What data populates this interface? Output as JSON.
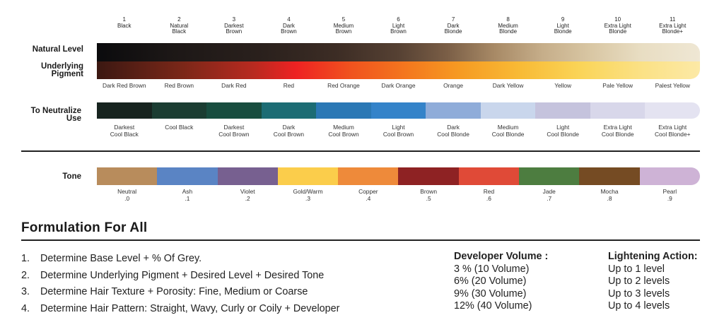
{
  "levels": [
    "1\nBlack",
    "2\nNatural\nBlack",
    "3\nDarkest\nBrown",
    "4\nDark\nBrown",
    "5\nMedium\nBrown",
    "6\nLight\nBrown",
    "7\nDark\nBlonde",
    "8\nMedium\nBlonde",
    "9\nLight\nBlonde",
    "10\nExtra Light\nBlonde",
    "11\nExtra Light\nBlonde+"
  ],
  "labels": {
    "natural_level": "Natural Level",
    "underlying_pigment": "Underlying\nPigment",
    "neutralize": "To Neutralize\nUse",
    "tone": "Tone"
  },
  "underlying_pigments": [
    "Dark Red Brown",
    "Red Brown",
    "Dark Red",
    "Red",
    "Red Orange",
    "Dark Orange",
    "Orange",
    "Dark Yellow",
    "Yellow",
    "Pale Yellow",
    "Palest Yellow"
  ],
  "neutralize": [
    {
      "label": "Darkest\nCool Black",
      "color": "#17241f"
    },
    {
      "label": "Cool Black",
      "color": "#1b3d32"
    },
    {
      "label": "Darkest\nCool Brown",
      "color": "#184d3f"
    },
    {
      "label": "Dark\nCool Brown",
      "color": "#1c6c74"
    },
    {
      "label": "Medium\nCool Brown",
      "color": "#2b78b5"
    },
    {
      "label": "Light\nCool Brown",
      "color": "#3483c9"
    },
    {
      "label": "Dark\nCool Blonde",
      "color": "#8facd9"
    },
    {
      "label": "Medium\nCool Blonde",
      "color": "#c9d6ec"
    },
    {
      "label": "Light\nCool Blonde",
      "color": "#c5c3dd"
    },
    {
      "label": "Extra Light\nCool Blonde",
      "color": "#d8d7ea"
    },
    {
      "label": "Extra Light\nCool Blonde+",
      "color": "#e4e3f1"
    }
  ],
  "tones": [
    {
      "label": "Neutral\n.0",
      "color": "#b88c5c"
    },
    {
      "label": "Ash\n.1",
      "color": "#5a84c4"
    },
    {
      "label": "Violet\n.2",
      "color": "#776090"
    },
    {
      "label": "Gold/Warm\n.3",
      "color": "#fbcd4b"
    },
    {
      "label": "Copper\n.4",
      "color": "#ee8a3a"
    },
    {
      "label": "Brown\n.5",
      "color": "#8e2223"
    },
    {
      "label": "Red\n.6",
      "color": "#e04a37"
    },
    {
      "label": "Jade\n.7",
      "color": "#4d7d40"
    },
    {
      "label": "Mocha\n.8",
      "color": "#754b23"
    },
    {
      "label": "Pearl\n.9",
      "color": "#ceb3d6"
    }
  ],
  "formulation": {
    "title": "Formulation For All",
    "steps": [
      {
        "num": "1.",
        "text": "Determine Base Level + % Of Grey."
      },
      {
        "num": "2.",
        "text": "Determine Underlying Pigment + Desired Level + Desired Tone"
      },
      {
        "num": "3.",
        "text": "Determine Hair Texture + Porosity: Fine, Medium or Coarse"
      },
      {
        "num": "4.",
        "text": "Determine Hair Pattern: Straight, Wavy, Curly or Coily + Developer"
      }
    ],
    "developer": {
      "title": "Developer Volume :",
      "items": [
        "3 % (10 Volume)",
        "6% (20 Volume)",
        "9% (30 Volume)",
        "12% (40 Volume)"
      ]
    },
    "lightening": {
      "title": "Lightening Action:",
      "items": [
        "Up to 1 level",
        "Up to 2 levels",
        "Up to 3 levels",
        "Up to 4 levels"
      ]
    }
  }
}
